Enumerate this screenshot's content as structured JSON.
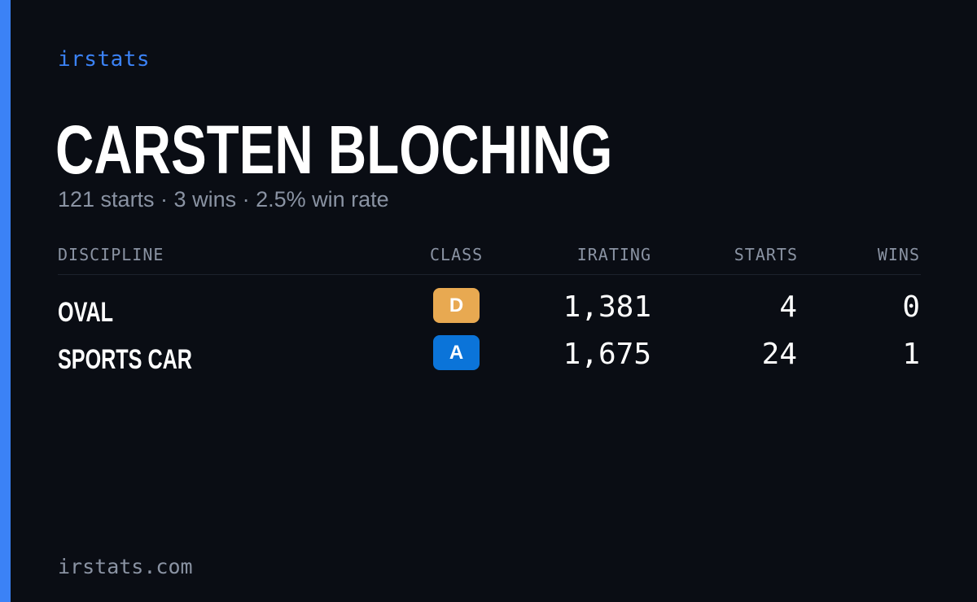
{
  "brand": "irstats",
  "driver": {
    "name": "CARSTEN BLOCHING",
    "summary": "121 starts · 3 wins · 2.5% win rate"
  },
  "table": {
    "headers": {
      "discipline": "DISCIPLINE",
      "class": "CLASS",
      "irating": "IRATING",
      "starts": "STARTS",
      "wins": "WINS"
    },
    "rows": [
      {
        "discipline": "OVAL",
        "class": "D",
        "class_color": "#e8a951",
        "irating": "1,381",
        "starts": "4",
        "wins": "0"
      },
      {
        "discipline": "SPORTS CAR",
        "class": "A",
        "class_color": "#0b74d9",
        "irating": "1,675",
        "starts": "24",
        "wins": "1"
      }
    ]
  },
  "footer": "irstats.com",
  "colors": {
    "accent": "#3b82f6",
    "background": "#0a0d14",
    "muted_text": "#8a93a3"
  }
}
